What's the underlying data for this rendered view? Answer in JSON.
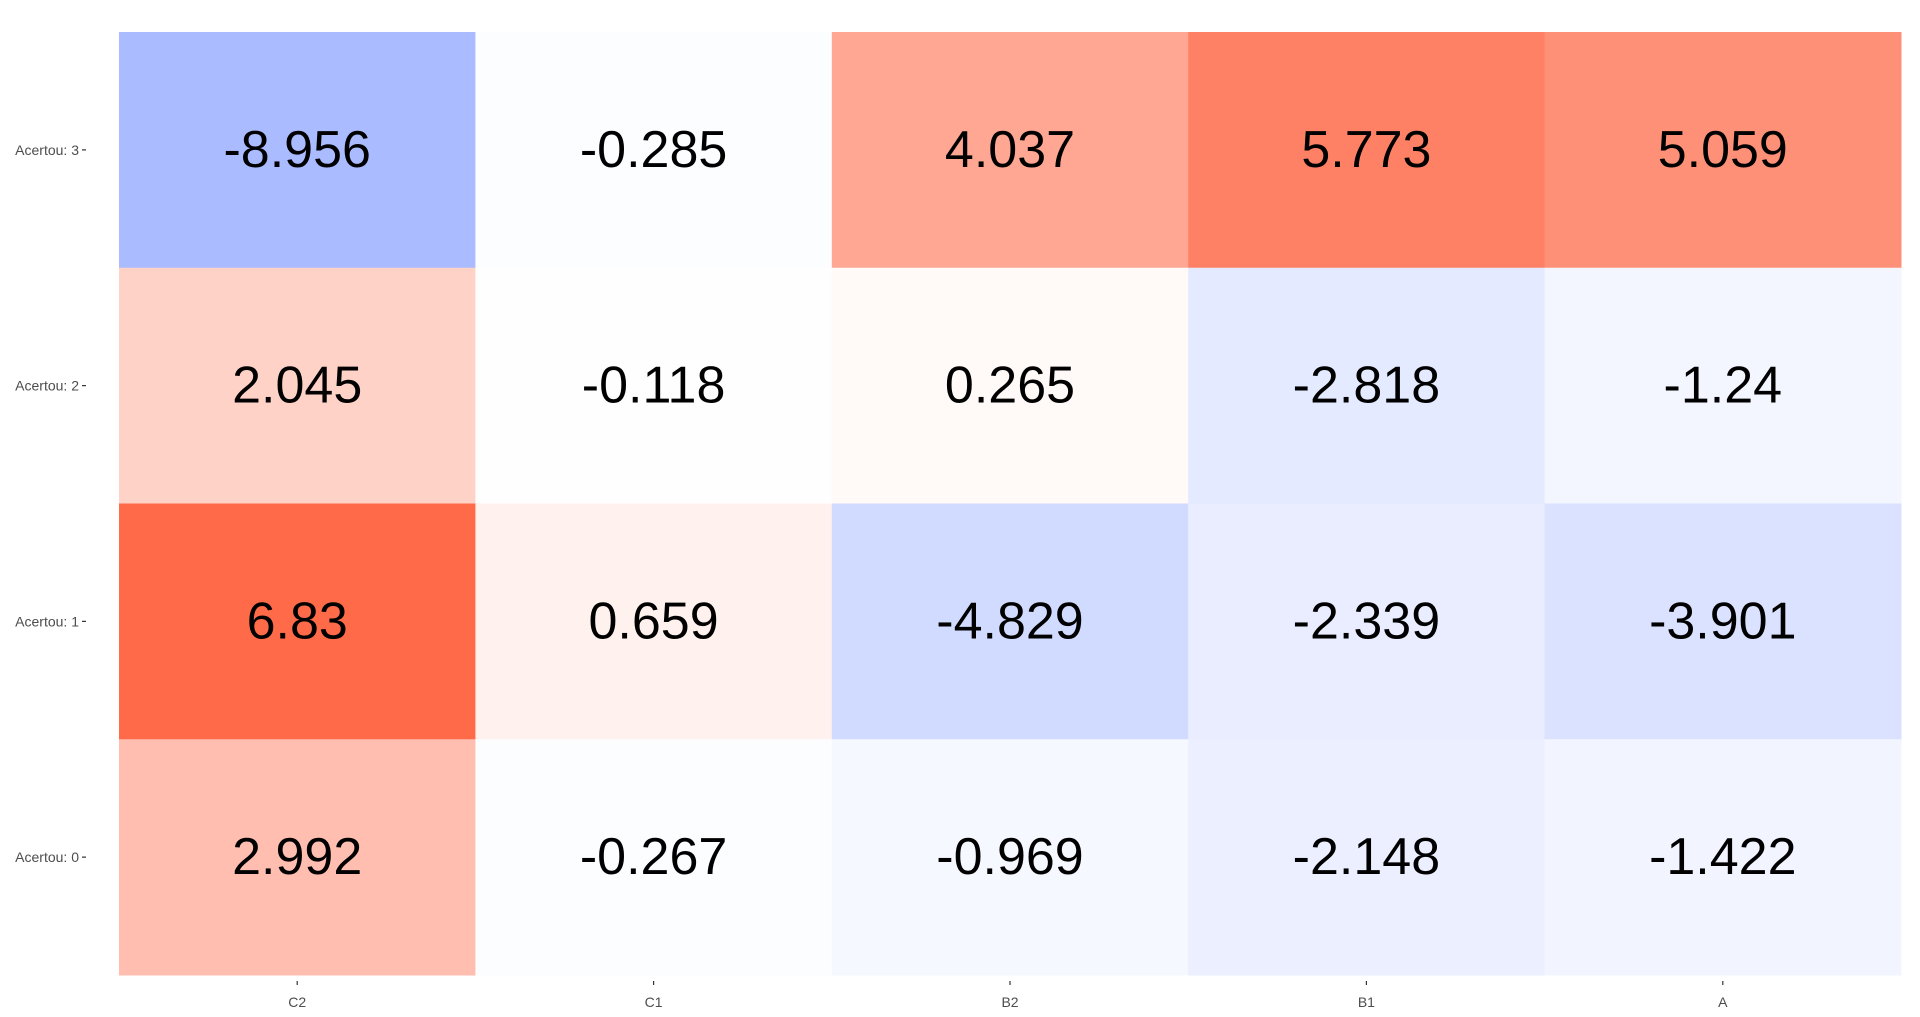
{
  "chart_data": {
    "type": "heatmap",
    "title": "",
    "xlabel": "",
    "ylabel": "",
    "x_categories": [
      "C2",
      "C1",
      "B2",
      "B1",
      "A"
    ],
    "y_categories": [
      "Acertou: 3",
      "Acertou: 2",
      "Acertou: 1",
      "Acertou: 0"
    ],
    "values": [
      [
        -8.956,
        -0.285,
        4.037,
        5.773,
        5.059
      ],
      [
        2.045,
        -0.118,
        0.265,
        -2.818,
        -1.24
      ],
      [
        6.83,
        0.659,
        -4.829,
        -2.339,
        -3.901
      ],
      [
        2.992,
        -0.267,
        -0.969,
        -2.148,
        -1.422
      ]
    ],
    "value_labels": [
      [
        "-8.956",
        "-0.285",
        "4.037",
        "5.773",
        "5.059"
      ],
      [
        "2.045",
        "-0.118",
        "0.265",
        "-2.818",
        "-1.24"
      ],
      [
        "6.83",
        "0.659",
        "-4.829",
        "-2.339",
        "-3.901"
      ],
      [
        "2.992",
        "-0.267",
        "-0.969",
        "-2.148",
        "-1.422"
      ]
    ],
    "color_scale": {
      "negative": "#aabbff",
      "midpoint": "#ffffff",
      "positive": "#ff6644",
      "limits": [
        -9,
        7
      ]
    },
    "legend": "none",
    "grid": false,
    "background": "#ffffff"
  }
}
